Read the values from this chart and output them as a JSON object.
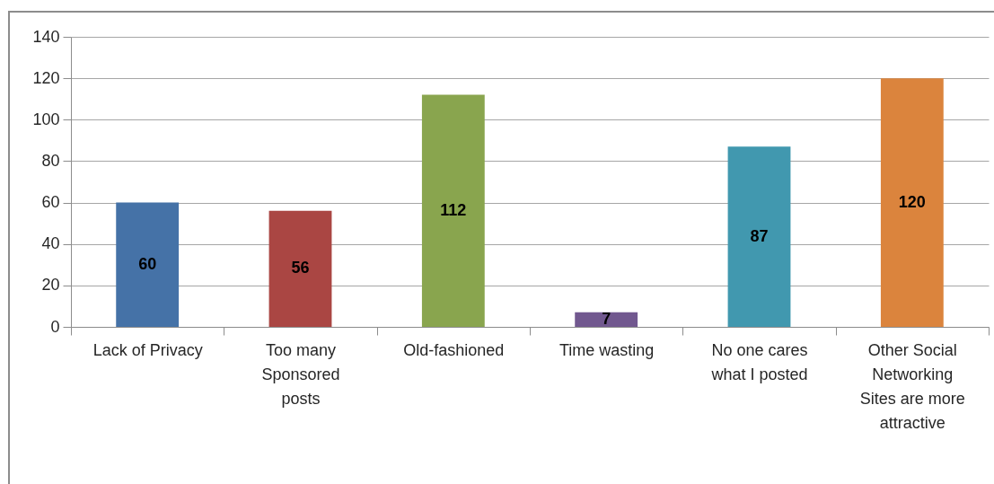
{
  "chart_data": {
    "type": "bar",
    "categories": [
      "Lack of Privacy",
      "Too many Sponsored posts",
      "Old-fashioned",
      "Time wasting",
      "No one cares what I posted",
      "Other Social Networking Sites are more attractive"
    ],
    "values": [
      60,
      56,
      112,
      7,
      87,
      120
    ],
    "colors": [
      "#4572a7",
      "#aa4643",
      "#89a54e",
      "#71588f",
      "#4198af",
      "#db843d"
    ],
    "ylim": [
      0,
      140
    ],
    "yticks": [
      0,
      20,
      40,
      60,
      80,
      100,
      120,
      140
    ],
    "grid": "y",
    "data_labels": true
  }
}
